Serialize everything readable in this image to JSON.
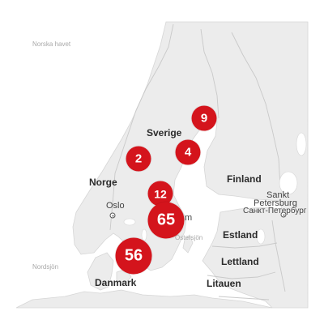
{
  "map": {
    "colors": {
      "sea": "#ffffff",
      "land": "#ececec",
      "border": "#c9c9c9",
      "coast": "#d6d6d6",
      "marker": "#d4141c"
    },
    "sea_labels": {
      "norwegian_sea": "Norska havet",
      "north_sea": "Nordsjön",
      "baltic": "Östersjön",
      "gulf": ""
    },
    "countries": {
      "sverige": "Sverige",
      "norge": "Norge",
      "finland": "Finland",
      "danmark": "Danmark",
      "estland": "Estland",
      "lettland": "Lettland",
      "litauen": "Litauen"
    },
    "cities": {
      "oslo": "Oslo",
      "stockholm_partial": "m",
      "sankt_latin_1": "Sankt",
      "sankt_latin_2": "Petersburg",
      "sankt_cyrillic": "Санкт-Петербург"
    },
    "markers": [
      {
        "id": "m9",
        "count": "9"
      },
      {
        "id": "m4",
        "count": "4"
      },
      {
        "id": "m2",
        "count": "2"
      },
      {
        "id": "m12",
        "count": "12"
      },
      {
        "id": "m65",
        "count": "65"
      },
      {
        "id": "m56",
        "count": "56"
      }
    ]
  }
}
